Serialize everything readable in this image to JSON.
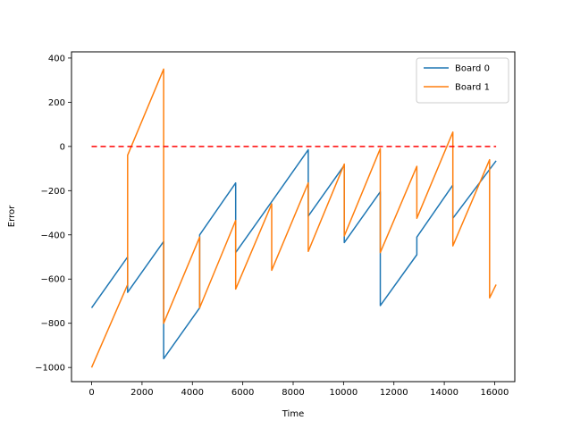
{
  "chart_data": {
    "type": "line",
    "title": "",
    "xlabel": "Time",
    "ylabel": "Error",
    "xlim": [
      -800,
      16800
    ],
    "ylim": [
      -1064,
      428
    ],
    "xticks": [
      0,
      2000,
      4000,
      6000,
      8000,
      10000,
      12000,
      14000,
      16000
    ],
    "yticks": [
      -1000,
      -800,
      -600,
      -400,
      -200,
      0,
      200,
      400
    ],
    "grid": false,
    "legend_position": "top-right",
    "series": [
      {
        "name": "Board 0",
        "color": "#1f77b4",
        "x": [
          0,
          1430,
          1430,
          2860,
          2860,
          4290,
          4290,
          5720,
          5720,
          7150,
          7150,
          8600,
          8600,
          10030,
          10030,
          11460,
          11460,
          12910,
          12910,
          14340,
          14340,
          16060
        ],
        "y": [
          -730,
          -500,
          -660,
          -430,
          -960,
          -730,
          -400,
          -165,
          -480,
          -250,
          -250,
          -15,
          -315,
          -85,
          -435,
          -205,
          -720,
          -490,
          -410,
          -175,
          -325,
          -65
        ]
      },
      {
        "name": "Board 1",
        "color": "#ff7f0e",
        "x": [
          0,
          1430,
          1430,
          2860,
          2860,
          4290,
          4290,
          5720,
          5720,
          7150,
          7150,
          8600,
          8600,
          10030,
          10030,
          11460,
          11460,
          12910,
          12910,
          14340,
          14340,
          15800,
          15800,
          16060
        ],
        "y": [
          -1000,
          -625,
          -40,
          350,
          -800,
          -410,
          -730,
          -335,
          -645,
          -260,
          -560,
          -165,
          -475,
          -80,
          -405,
          -10,
          -480,
          -90,
          -325,
          65,
          -450,
          -60,
          -685,
          -625
        ]
      },
      {
        "name": "",
        "color": "#ff0000",
        "dashed": true,
        "x": [
          0,
          16060
        ],
        "y": [
          0,
          0
        ]
      }
    ]
  }
}
